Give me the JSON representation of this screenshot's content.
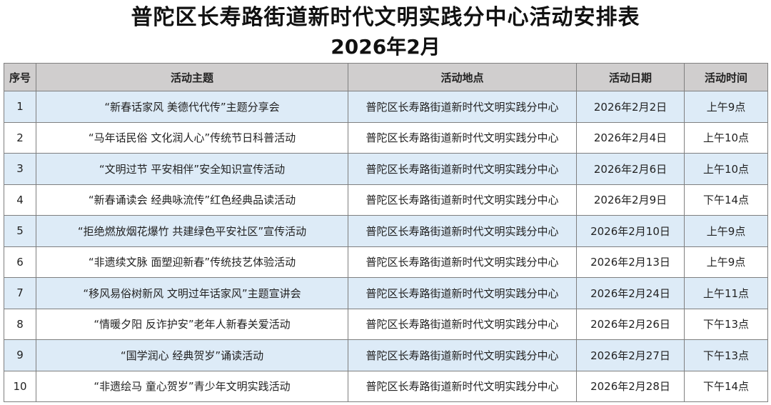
{
  "title": "普陀区长寿路街道新时代文明实践分中心活动安排表",
  "subtitle": "2026年2月",
  "headers": [
    "序号",
    "活动主题",
    "活动地点",
    "活动日期",
    "活动时间"
  ],
  "rows": [
    [
      "1",
      "“新春话家风 美德代代传”主题分享会",
      "普陀区长寿路街道新时代文明实践分中心",
      "2026年2月2日",
      "上午9点"
    ],
    [
      "2",
      "“马年话民俗 文化润人心”传统节日科普活动",
      "普陀区长寿路街道新时代文明实践分中心",
      "2026年2月4日",
      "上午10点"
    ],
    [
      "3",
      "“文明过节 平安相伴”安全知识宣传活动",
      "普陀区长寿路街道新时代文明实践分中心",
      "2026年2月6日",
      "上午10点"
    ],
    [
      "4",
      "“新春诵读会 经典咏流传”红色经典品读活动",
      "普陀区长寿路街道新时代文明实践分中心",
      "2026年2月9日",
      "下午14点"
    ],
    [
      "5",
      "“拒绝燃放烟花爆竹 共建绿色平安社区”宣传活动",
      "普陀区长寿路街道新时代文明实践分中心",
      "2026年2月10日",
      "上午9点"
    ],
    [
      "6",
      "“非遗续文脉 面塑迎新春”传统技艺体验活动",
      "普陀区长寿路街道新时代文明实践分中心",
      "2026年2月13日",
      "上午9点"
    ],
    [
      "7",
      "“移风易俗树新风 文明过年话家风”主题宣讲会",
      "普陀区长寿路街道新时代文明实践分中心",
      "2026年2月24日",
      "上午11点"
    ],
    [
      "8",
      "“情暖夕阳 反诈护安”老年人新春关爱活动",
      "普陀区长寿路街道新时代文明实践分中心",
      "2026年2月26日",
      "下午13点"
    ],
    [
      "9",
      "“国学润心 经典贺岁”诵读活动",
      "普陀区长寿路街道新时代文明实践分中心",
      "2026年2月27日",
      "下午13点"
    ],
    [
      "10",
      "“非遗绘马 童心贺岁”青少年文明实践活动",
      "普陀区长寿路街道新时代文明实践分中心",
      "2026年2月28日",
      "下午14点"
    ]
  ],
  "colors": {
    "header_bg": "#d0cece",
    "band_bg": "#ddebf7"
  }
}
